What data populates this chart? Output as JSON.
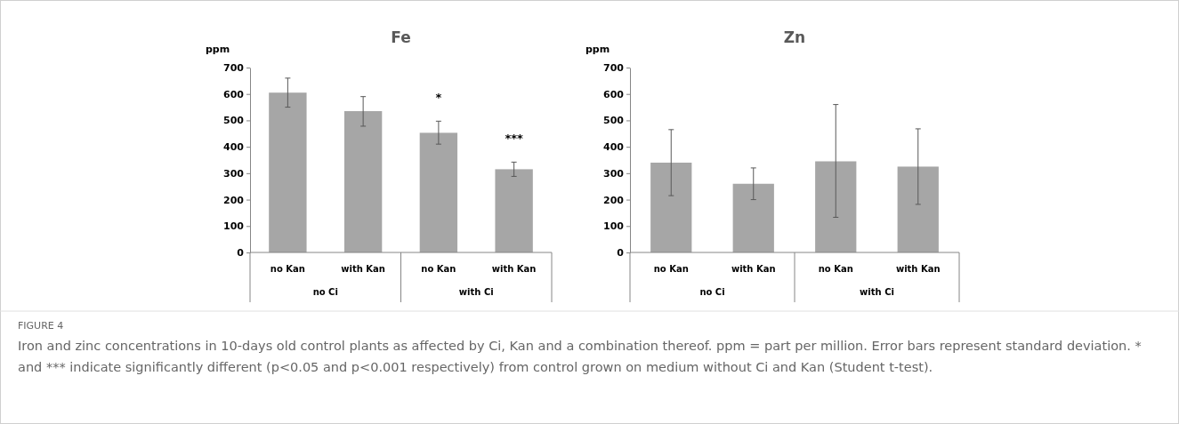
{
  "chart_data": [
    {
      "type": "bar",
      "title": "Fe",
      "ylabel": "ppm",
      "categories": [
        "no Kan",
        "with Kan",
        "no Kan",
        "with Kan"
      ],
      "values": [
        605,
        535,
        453,
        315
      ],
      "errors": [
        [
          550,
          660
        ],
        [
          478,
          590
        ],
        [
          410,
          497
        ],
        [
          288,
          342
        ]
      ],
      "value_labels": [
        null,
        null,
        "*",
        "***"
      ],
      "color": "#a6a6a6",
      "ylim": [
        0,
        700
      ],
      "yticks": [
        0,
        100,
        200,
        300,
        400,
        500,
        600,
        700
      ],
      "annotations": [
        "no Ci",
        "with Ci"
      ]
    },
    {
      "type": "bar",
      "title": "Zn",
      "ylabel": "ppm",
      "categories": [
        "no Kan",
        "with Kan",
        "no Kan",
        "with Kan"
      ],
      "values": [
        340,
        260,
        345,
        325
      ],
      "errors": [
        [
          215,
          465
        ],
        [
          200,
          320
        ],
        [
          133,
          560
        ],
        [
          182,
          468
        ]
      ],
      "color": "#a6a6a6",
      "ylim": [
        0,
        700
      ],
      "yticks": [
        0,
        100,
        200,
        300,
        400,
        500,
        600,
        700
      ],
      "annotations": [
        "no Ci",
        "with Ci"
      ]
    },
    {
      "type": "other",
      "title": "FIGURE 4",
      "annotations": [
        "Iron and zinc concentrations in 10-days old control plants as affected by Ci, Kan and a combination thereof. ppm = part per million. Error bars represent standard deviation. * and *** indicate significantly different (p<0.05 and p<0.001 respectively) from control grown on medium without Ci and Kan (Student t-test)."
      ]
    }
  ]
}
